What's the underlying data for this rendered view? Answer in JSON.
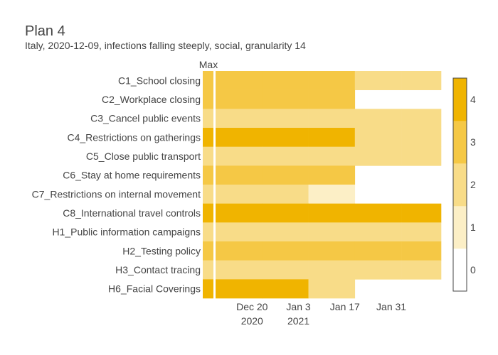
{
  "chart_data": {
    "type": "heatmap",
    "title": "Plan 4",
    "subtitle": "Italy, 2020-12-09, infections falling steeply, social, granularity 14",
    "max_column_label": "Max",
    "rows": [
      "C1_School closing",
      "C2_Workplace closing",
      "C3_Cancel public events",
      "C4_Restrictions on gatherings",
      "C5_Close public transport",
      "C6_Stay at home requirements",
      "C7_Restrictions on internal movement",
      "C8_International travel controls",
      "H1_Public information campaigns",
      "H2_Testing policy",
      "H3_Contact tracing",
      "H6_Facial Coverings"
    ],
    "x_ticks": [
      {
        "label": "Dec 20",
        "sub": "2020",
        "date": "2020-12-20"
      },
      {
        "label": "Jan 3",
        "sub": "2021",
        "date": "2021-01-03"
      },
      {
        "label": "Jan 17",
        "sub": "",
        "date": "2021-01-17"
      },
      {
        "label": "Jan 31",
        "sub": "",
        "date": "2021-01-31"
      }
    ],
    "x_range": [
      "2020-12-09",
      "2021-02-15"
    ],
    "periods": [
      {
        "start": "2020-12-09",
        "end": "2020-12-23"
      },
      {
        "start": "2020-12-23",
        "end": "2021-01-06"
      },
      {
        "start": "2021-01-06",
        "end": "2021-01-20"
      },
      {
        "start": "2021-01-20",
        "end": "2021-02-03"
      },
      {
        "start": "2021-02-03",
        "end": "2021-02-17"
      }
    ],
    "max_values": [
      3,
      3,
      2,
      4,
      2,
      3,
      2,
      4,
      2,
      3,
      2,
      4
    ],
    "values": [
      [
        3,
        3,
        3,
        2,
        2
      ],
      [
        3,
        3,
        3,
        null,
        null
      ],
      [
        2,
        2,
        2,
        2,
        2
      ],
      [
        4,
        4,
        4,
        2,
        2
      ],
      [
        2,
        2,
        2,
        2,
        2
      ],
      [
        3,
        3,
        3,
        null,
        null
      ],
      [
        2,
        2,
        1,
        null,
        null
      ],
      [
        4,
        4,
        4,
        4,
        4
      ],
      [
        2,
        2,
        2,
        2,
        2
      ],
      [
        3,
        3,
        3,
        3,
        3
      ],
      [
        2,
        2,
        2,
        2,
        2
      ],
      [
        4,
        4,
        2,
        null,
        null
      ]
    ],
    "colorscale": {
      "levels": [
        0,
        1,
        2,
        3,
        4
      ],
      "colors": [
        "#ffffff",
        "#fcefc6",
        "#f8dc88",
        "#f5c845",
        "#f0b400"
      ],
      "range": [
        -0.5,
        4.5
      ]
    }
  }
}
